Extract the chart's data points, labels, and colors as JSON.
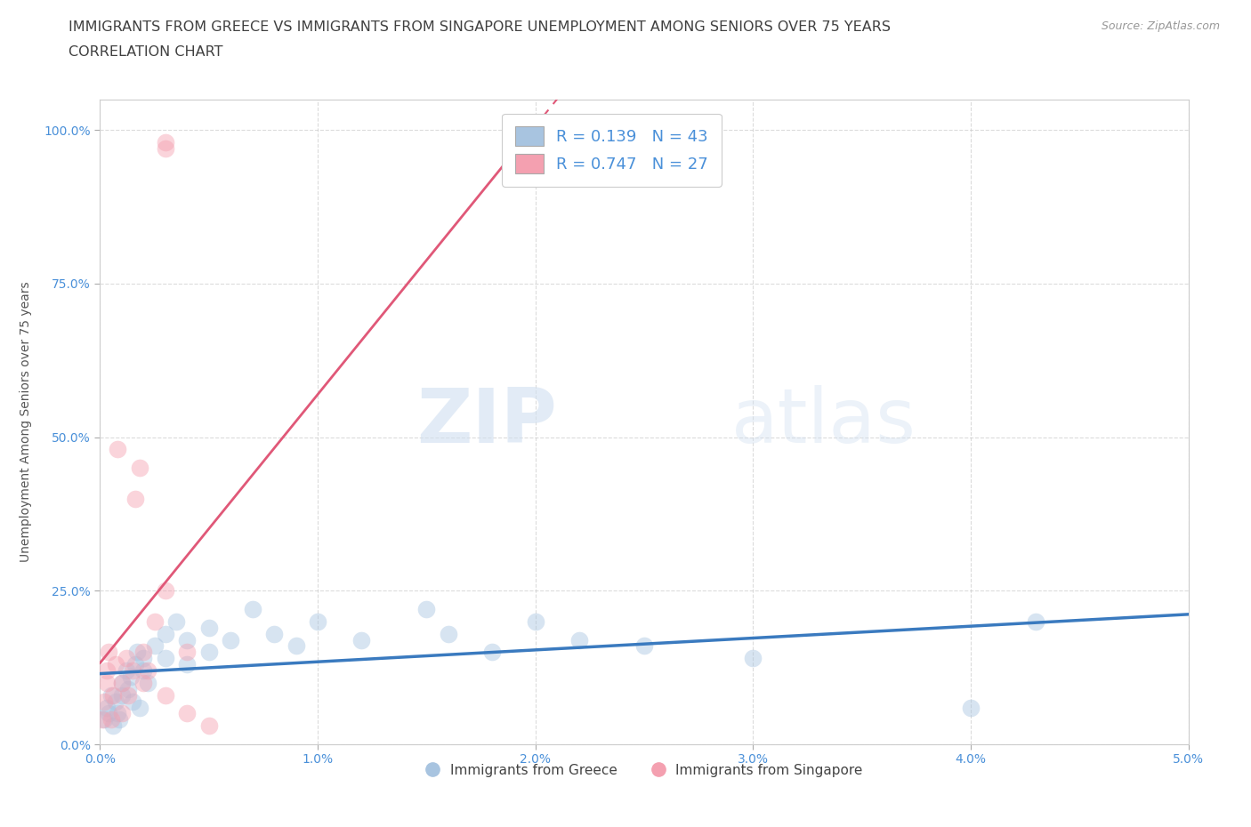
{
  "title_line1": "IMMIGRANTS FROM GREECE VS IMMIGRANTS FROM SINGAPORE UNEMPLOYMENT AMONG SENIORS OVER 75 YEARS",
  "title_line2": "CORRELATION CHART",
  "source_text": "Source: ZipAtlas.com",
  "ylabel": "Unemployment Among Seniors over 75 years",
  "xlim": [
    0.0,
    0.05
  ],
  "ylim": [
    0.0,
    1.05
  ],
  "xticks": [
    0.0,
    0.01,
    0.02,
    0.03,
    0.04,
    0.05
  ],
  "xticklabels": [
    "0.0%",
    "1.0%",
    "2.0%",
    "3.0%",
    "4.0%",
    "5.0%"
  ],
  "yticks": [
    0.0,
    0.25,
    0.5,
    0.75,
    1.0
  ],
  "yticklabels": [
    "0.0%",
    "25.0%",
    "50.0%",
    "75.0%",
    "100.0%"
  ],
  "greece_color": "#a8c4e0",
  "singapore_color": "#f4a0b0",
  "greece_line_color": "#3a7abf",
  "singapore_line_color": "#e05878",
  "legend_R_greece": "R = 0.139",
  "legend_N_greece": "N = 43",
  "legend_R_singapore": "R = 0.747",
  "legend_N_singapore": "N = 27",
  "legend_label_greece": "Immigrants from Greece",
  "legend_label_singapore": "Immigrants from Singapore",
  "watermark_zip": "ZIP",
  "watermark_atlas": "atlas",
  "title_color": "#404040",
  "tick_color": "#4a90d9",
  "greece_scatter_x": [
    0.0002,
    0.0003,
    0.0004,
    0.0005,
    0.0006,
    0.0007,
    0.0008,
    0.0009,
    0.001,
    0.001,
    0.0012,
    0.0013,
    0.0014,
    0.0015,
    0.0016,
    0.0017,
    0.0018,
    0.002,
    0.002,
    0.0022,
    0.0025,
    0.003,
    0.003,
    0.0035,
    0.004,
    0.004,
    0.005,
    0.005,
    0.006,
    0.007,
    0.008,
    0.009,
    0.01,
    0.012,
    0.015,
    0.016,
    0.018,
    0.02,
    0.022,
    0.025,
    0.03,
    0.04,
    0.043
  ],
  "greece_scatter_y": [
    0.04,
    0.06,
    0.05,
    0.08,
    0.03,
    0.07,
    0.05,
    0.04,
    0.1,
    0.08,
    0.12,
    0.09,
    0.11,
    0.07,
    0.13,
    0.15,
    0.06,
    0.14,
    0.12,
    0.1,
    0.16,
    0.18,
    0.14,
    0.2,
    0.17,
    0.13,
    0.19,
    0.15,
    0.17,
    0.22,
    0.18,
    0.16,
    0.2,
    0.17,
    0.22,
    0.18,
    0.15,
    0.2,
    0.17,
    0.16,
    0.14,
    0.06,
    0.2
  ],
  "singapore_scatter_x": [
    0.0001,
    0.0002,
    0.0003,
    0.0003,
    0.0004,
    0.0005,
    0.0006,
    0.0007,
    0.0008,
    0.001,
    0.001,
    0.0012,
    0.0013,
    0.0015,
    0.0016,
    0.0018,
    0.002,
    0.002,
    0.0022,
    0.0025,
    0.003,
    0.003,
    0.003,
    0.003,
    0.004,
    0.004,
    0.005
  ],
  "singapore_scatter_y": [
    0.04,
    0.07,
    0.1,
    0.12,
    0.15,
    0.04,
    0.08,
    0.13,
    0.48,
    0.05,
    0.1,
    0.14,
    0.08,
    0.12,
    0.4,
    0.45,
    0.1,
    0.15,
    0.12,
    0.2,
    0.97,
    0.98,
    0.25,
    0.08,
    0.05,
    0.15,
    0.03
  ],
  "background_color": "#ffffff",
  "grid_color": "#cccccc",
  "scatter_size": 200,
  "scatter_alpha": 0.45,
  "title_fontsize": 11.5,
  "axis_label_fontsize": 10,
  "tick_fontsize": 10,
  "legend_fontsize": 13
}
